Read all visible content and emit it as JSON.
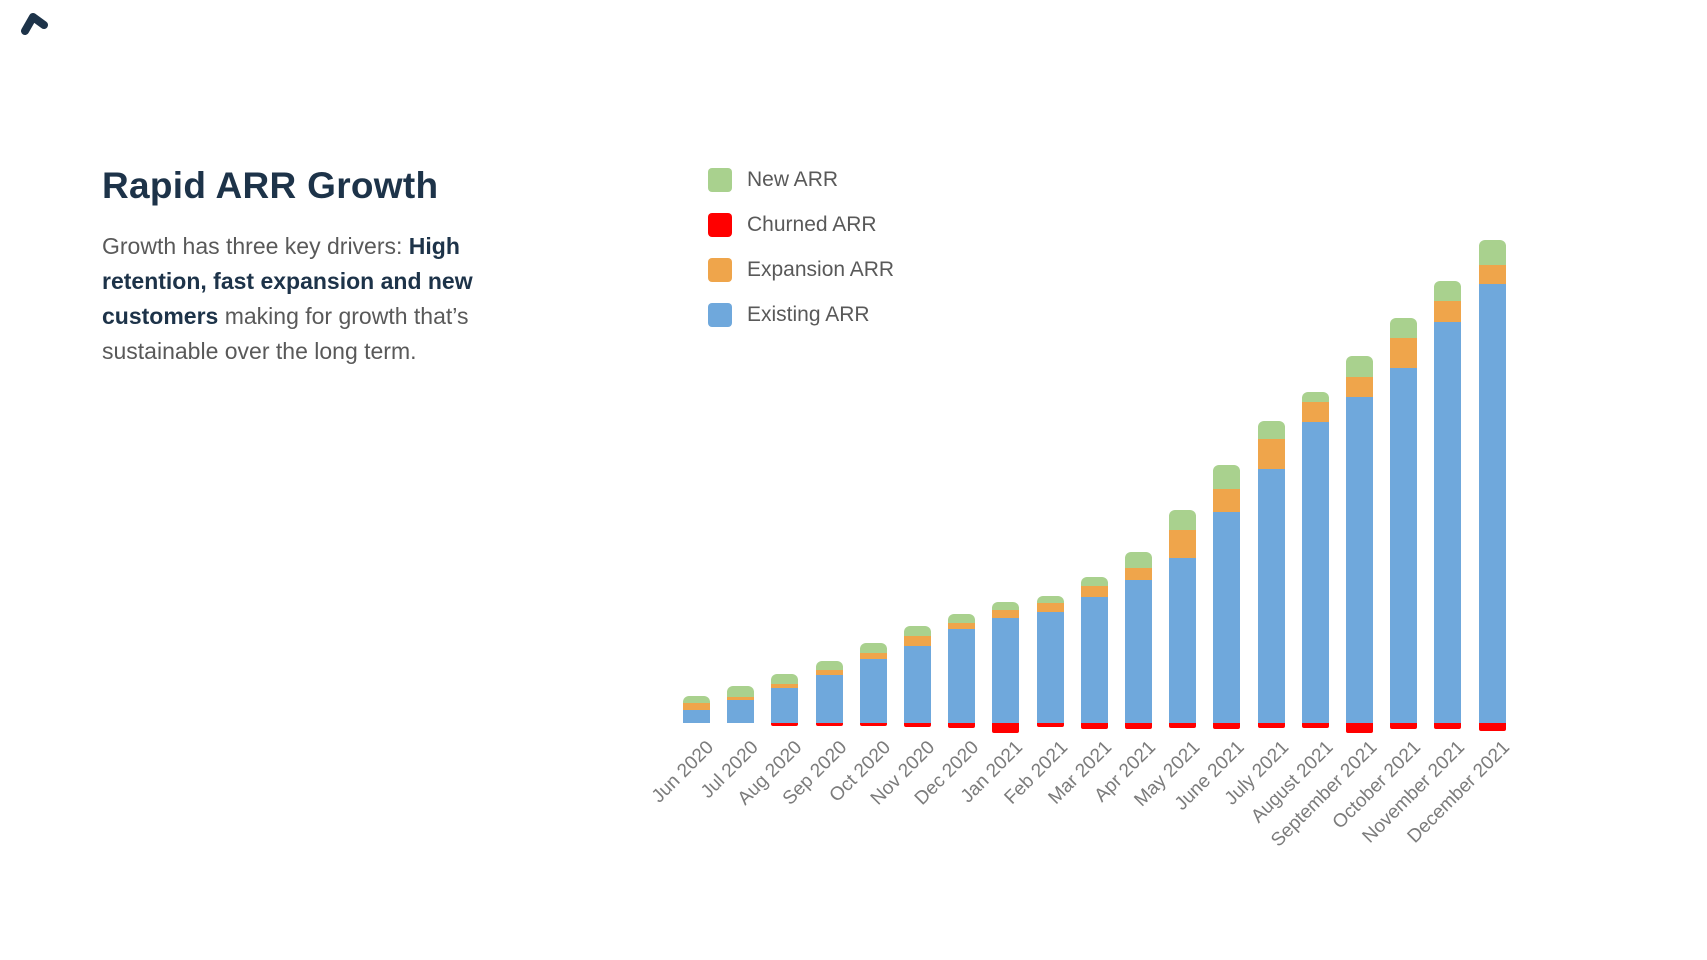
{
  "logo": {
    "icon": "chevron-up-icon",
    "color": "#1d3349"
  },
  "heading": {
    "title": "Rapid ARR Growth"
  },
  "intro": {
    "prefix": "Growth has three key drivers: ",
    "bold": "High retention, fast expansion and new customers",
    "suffix": " making for growth that’s sustainable over the long term."
  },
  "colors": {
    "navy_text": "#1d3349",
    "body_text": "#595959",
    "axis_text": "#7b7b7b",
    "background": "#ffffff"
  },
  "chart_data": {
    "type": "bar",
    "stacked": true,
    "title": "",
    "xlabel": "",
    "ylabel": "",
    "value_units": "relative ARR units (chart shows no numeric y-axis)",
    "grid": false,
    "legend_position": "top-left, vertical list",
    "churned_plotted_below_zero_axis": true,
    "stack_order_top_to_bottom": [
      "New ARR",
      "Expansion ARR",
      "Existing ARR"
    ],
    "categories": [
      "Jun 2020",
      "Jul 2020",
      "Aug 2020",
      "Sep 2020",
      "Oct 2020",
      "Nov 2020",
      "Dec 2020",
      "Jan 2021",
      "Feb 2021",
      "Mar 2021",
      "Apr 2021",
      "May 2021",
      "June 2021",
      "July 2021",
      "August 2021",
      "September 2021",
      "October 2021",
      "November 2021",
      "December 2021"
    ],
    "series": [
      {
        "name": "New ARR",
        "color": "#a9d18e",
        "values": [
          7,
          11,
          10,
          9,
          10,
          10,
          9,
          8,
          7,
          9,
          16,
          20,
          24,
          18,
          10,
          21,
          20,
          20,
          25
        ]
      },
      {
        "name": "Churned ARR",
        "color": "#ff0000",
        "values": [
          0,
          0,
          -3,
          -3,
          -3,
          -4,
          -5,
          -10,
          -4,
          -6,
          -6,
          -5,
          -6,
          -5,
          -5,
          -10,
          -6,
          -6,
          -8
        ]
      },
      {
        "name": "Expansion ARR",
        "color": "#efa54b",
        "values": [
          7,
          3,
          4,
          5,
          6,
          10,
          6,
          8,
          9,
          11,
          12,
          28,
          23,
          30,
          20,
          20,
          30,
          21,
          19
        ]
      },
      {
        "name": "Existing ARR",
        "color": "#6fa8dc",
        "values": [
          13,
          23,
          35,
          48,
          64,
          77,
          94,
          105,
          111,
          126,
          143,
          165,
          211,
          254,
          301,
          326,
          355,
          401,
          439
        ]
      }
    ]
  }
}
